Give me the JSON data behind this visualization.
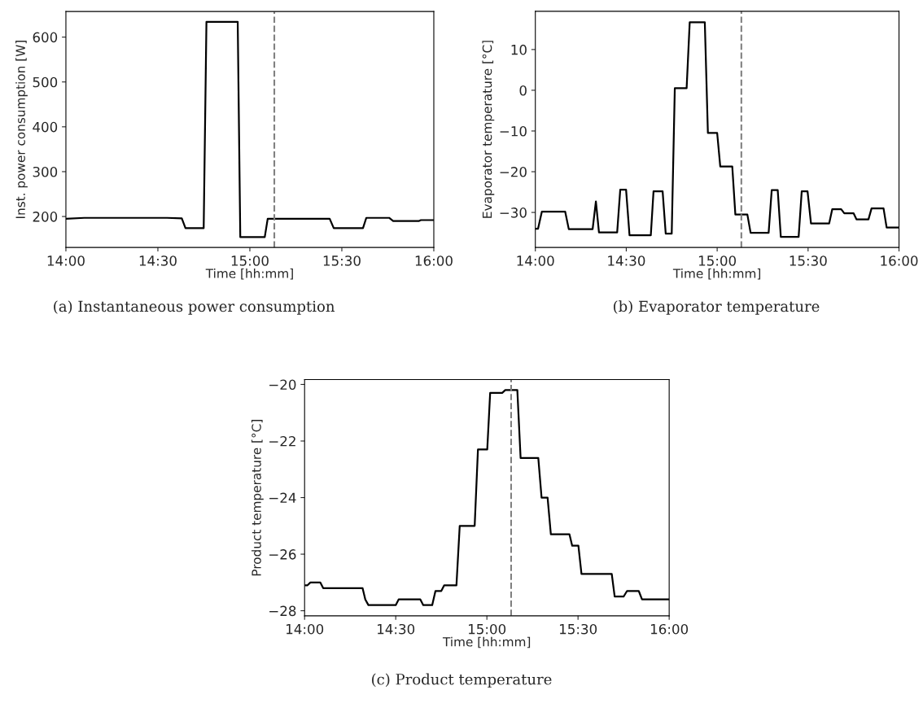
{
  "chart_data": [
    {
      "type": "line",
      "xlabel": "Time [hh:mm]",
      "ylabel": "Inst. power consumption [W]",
      "annotations": [
        "(a) Instantaneous power consumption"
      ],
      "xlim": [
        14,
        16
      ],
      "xticks": [
        {
          "value": 14,
          "label": "14:00"
        },
        {
          "value": 14.5,
          "label": "14:30"
        },
        {
          "value": 15,
          "label": "15:00"
        },
        {
          "value": 15.5,
          "label": "15:30"
        },
        {
          "value": 16,
          "label": "16:00"
        }
      ],
      "ylim": [
        131,
        657
      ],
      "yticks": [
        200,
        300,
        400,
        500,
        600
      ],
      "line_style": "solid",
      "ref_lines": [
        {
          "axis": "x",
          "value": 15.133,
          "color": "#808080",
          "line_style": "dashed"
        }
      ],
      "series": [
        {
          "color": "#000000",
          "x": [
            14.0,
            14.1,
            14.55,
            14.63,
            14.65,
            14.749,
            14.764,
            14.934,
            14.948,
            15.081,
            15.097,
            15.434,
            15.456,
            15.615,
            15.633,
            15.757,
            15.779,
            15.92,
            15.93,
            16.0
          ],
          "values": [
            195,
            197,
            197,
            196,
            174,
            174,
            634,
            634,
            154,
            154,
            195,
            195,
            174,
            174,
            197,
            197,
            190,
            190,
            192,
            192
          ]
        }
      ]
    },
    {
      "type": "line",
      "xlabel": "Time [hh:mm]",
      "ylabel": "Evaporator temperature [°C]",
      "annotations": [
        "(b) Evaporator temperature"
      ],
      "xlim": [
        14,
        16
      ],
      "xticks": [
        {
          "value": 14,
          "label": "14:00"
        },
        {
          "value": 14.5,
          "label": "14:30"
        },
        {
          "value": 15,
          "label": "15:00"
        },
        {
          "value": 15.5,
          "label": "15:30"
        },
        {
          "value": 16,
          "label": "16:00"
        }
      ],
      "ylim": [
        -38.6,
        19.4
      ],
      "yticks": [
        {
          "value": -30,
          "label": "−30"
        },
        {
          "value": -20,
          "label": "−20"
        },
        {
          "value": -10,
          "label": "−10"
        },
        0,
        10
      ],
      "line_style": "solid",
      "ref_lines": [
        {
          "axis": "x",
          "value": 15.133,
          "color": "#808080",
          "line_style": "dashed"
        }
      ],
      "series": [
        {
          "color": "#000000",
          "x": [
            14.0,
            14.015,
            14.036,
            14.164,
            14.184,
            14.315,
            14.333,
            14.35,
            14.45,
            14.467,
            14.499,
            14.518,
            14.635,
            14.65,
            14.7,
            14.717,
            14.75,
            14.767,
            14.832,
            14.849,
            14.932,
            14.949,
            15.0,
            15.017,
            15.083,
            15.1,
            15.166,
            15.184,
            15.283,
            15.3,
            15.333,
            15.35,
            15.448,
            15.465,
            15.497,
            15.516,
            15.616,
            15.633,
            15.682,
            15.699,
            15.75,
            15.766,
            15.832,
            15.849,
            15.915,
            15.932,
            16.0
          ],
          "values": [
            -34.0,
            -34.0,
            -29.8,
            -29.8,
            -34.1,
            -34.1,
            -27.3,
            -34.9,
            -34.9,
            -24.4,
            -24.4,
            -35.6,
            -35.6,
            -24.8,
            -24.8,
            -35.2,
            -35.2,
            0.5,
            0.5,
            16.7,
            16.7,
            -10.5,
            -10.5,
            -18.7,
            -18.7,
            -30.5,
            -30.5,
            -35.0,
            -35.0,
            -24.5,
            -24.5,
            -36.0,
            -36.0,
            -24.8,
            -24.8,
            -32.7,
            -32.7,
            -29.2,
            -29.2,
            -30.2,
            -30.2,
            -31.7,
            -31.7,
            -29.0,
            -29.0,
            -33.7,
            -33.7
          ]
        }
      ]
    },
    {
      "type": "line",
      "xlabel": "Time [hh:mm]",
      "ylabel": "Product temperature [°C]",
      "annotations": [
        "(c) Product temperature"
      ],
      "xlim": [
        14,
        16
      ],
      "xticks": [
        {
          "value": 14,
          "label": "14:00"
        },
        {
          "value": 14.5,
          "label": "14:30"
        },
        {
          "value": 15,
          "label": "15:00"
        },
        {
          "value": 15.5,
          "label": "15:30"
        },
        {
          "value": 16,
          "label": "16:00"
        }
      ],
      "ylim": [
        -28.18,
        -19.83
      ],
      "yticks": [
        {
          "value": -28,
          "label": "−28"
        },
        {
          "value": -26,
          "label": "−26"
        },
        {
          "value": -24,
          "label": "−24"
        },
        {
          "value": -22,
          "label": "−22"
        },
        {
          "value": -20,
          "label": "−20"
        }
      ],
      "line_style": "solid",
      "ref_lines": [
        {
          "axis": "x",
          "value": 15.133,
          "color": "#808080",
          "line_style": "dashed"
        }
      ],
      "series": [
        {
          "color": "#000000",
          "x": [
            14.0,
            14.016,
            14.032,
            14.086,
            14.102,
            14.318,
            14.333,
            14.35,
            14.5,
            14.516,
            14.635,
            14.651,
            14.7,
            14.718,
            14.75,
            14.766,
            14.833,
            14.851,
            14.933,
            14.951,
            15.002,
            15.018,
            15.084,
            15.101,
            15.167,
            15.185,
            15.282,
            15.3,
            15.333,
            15.351,
            15.453,
            15.468,
            15.502,
            15.519,
            15.685,
            15.701,
            15.75,
            15.769,
            15.833,
            15.851,
            16.0
          ],
          "values": [
            -27.1,
            -27.1,
            -27.0,
            -27.0,
            -27.2,
            -27.2,
            -27.6,
            -27.8,
            -27.8,
            -27.6,
            -27.6,
            -27.8,
            -27.8,
            -27.3,
            -27.3,
            -27.1,
            -27.1,
            -25.0,
            -25.0,
            -22.3,
            -22.3,
            -20.3,
            -20.3,
            -20.2,
            -20.2,
            -22.6,
            -22.6,
            -24.0,
            -24.0,
            -25.3,
            -25.3,
            -25.7,
            -25.7,
            -26.7,
            -26.7,
            -27.5,
            -27.5,
            -27.3,
            -27.3,
            -27.6,
            -27.6
          ]
        }
      ]
    }
  ]
}
